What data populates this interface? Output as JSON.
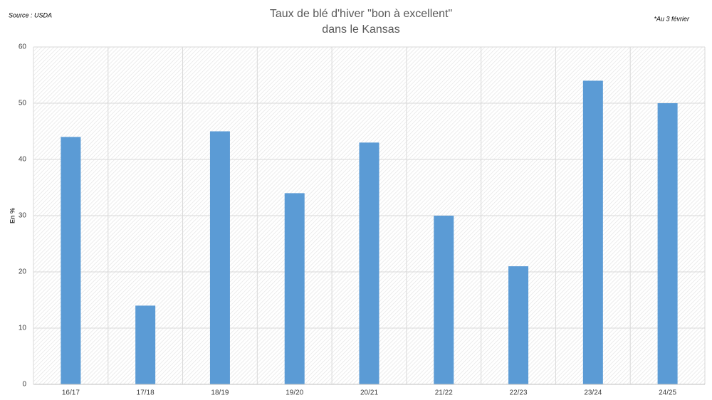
{
  "chart_data": {
    "type": "bar",
    "title": [
      "Taux de blé d'hiver \"bon à excellent\"",
      "dans le Kansas"
    ],
    "source": "Source : USDA",
    "note": "*Au 3 février",
    "y_label": "En %",
    "categories": [
      "16/17",
      "17/18",
      "18/19",
      "19/20",
      "20/21",
      "21/22",
      "22/23",
      "23/24",
      "24/25"
    ],
    "values": [
      44,
      14,
      45,
      34,
      43,
      30,
      21,
      54,
      50
    ],
    "color": "#5b9bd5",
    "ylim": [
      0,
      60
    ],
    "yticks": [
      0,
      10,
      20,
      30,
      40,
      50,
      60
    ],
    "grid": true
  }
}
